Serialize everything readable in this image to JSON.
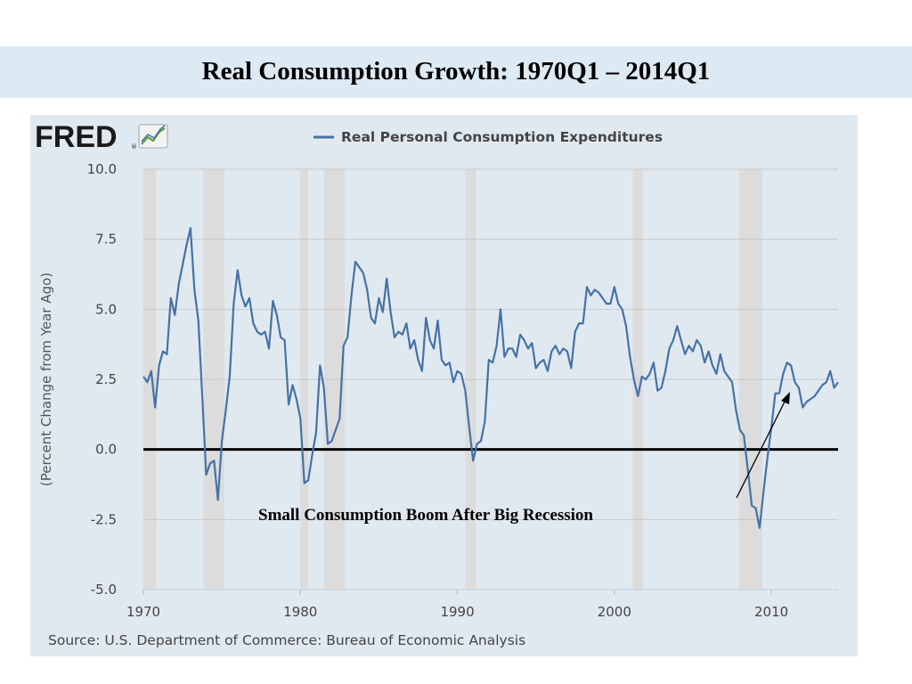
{
  "slide": {
    "title": "Real Consumption Growth: 1970Q1 – 2014Q1"
  },
  "fred": {
    "logo_text": "FRED",
    "registered_mark": "®"
  },
  "annotation": {
    "text": "Small Consumption Boom After Big Recession"
  },
  "colors": {
    "series": "#4572a7",
    "recession": "#dcdcdc",
    "zero_line": "#000000",
    "frame_background": "#e1e9f0",
    "title_band": "#dde9f3"
  },
  "chart_data": {
    "type": "line",
    "ylabel": "(Percent Change from Year Ago)",
    "source": "Source: U.S. Department of Commerce: Bureau of Economic Analysis",
    "xlim": [
      1970,
      2014.25
    ],
    "ylim": [
      -5,
      10
    ],
    "yticks": [
      "10.0",
      "7.5",
      "5.0",
      "2.5",
      "0.0",
      "-2.5",
      "-5.0"
    ],
    "xticks": [
      "1970",
      "1980",
      "1990",
      "2000",
      "2010"
    ],
    "grid": true,
    "legend": "top-center",
    "recessions": [
      [
        1970.0,
        1970.83
      ],
      [
        1973.83,
        1975.17
      ],
      [
        1980.0,
        1980.5
      ],
      [
        1981.5,
        1982.83
      ],
      [
        1990.5,
        1991.17
      ],
      [
        2001.17,
        2001.83
      ],
      [
        2007.92,
        2009.42
      ]
    ],
    "series": [
      {
        "name": "Real Personal Consumption Expenditures",
        "points": [
          [
            1970.0,
            2.6
          ],
          [
            1970.25,
            2.4
          ],
          [
            1970.5,
            2.8
          ],
          [
            1970.75,
            1.5
          ],
          [
            1971.0,
            3.0
          ],
          [
            1971.25,
            3.5
          ],
          [
            1971.5,
            3.4
          ],
          [
            1971.75,
            5.4
          ],
          [
            1972.0,
            4.8
          ],
          [
            1972.25,
            5.9
          ],
          [
            1972.5,
            6.6
          ],
          [
            1972.75,
            7.3
          ],
          [
            1973.0,
            7.9
          ],
          [
            1973.25,
            5.7
          ],
          [
            1973.5,
            4.6
          ],
          [
            1973.75,
            1.9
          ],
          [
            1974.0,
            -0.9
          ],
          [
            1974.25,
            -0.5
          ],
          [
            1974.5,
            -0.4
          ],
          [
            1974.75,
            -1.8
          ],
          [
            1975.0,
            0.3
          ],
          [
            1975.25,
            1.4
          ],
          [
            1975.5,
            2.6
          ],
          [
            1975.75,
            5.2
          ],
          [
            1976.0,
            6.4
          ],
          [
            1976.25,
            5.5
          ],
          [
            1976.5,
            5.1
          ],
          [
            1976.75,
            5.4
          ],
          [
            1977.0,
            4.5
          ],
          [
            1977.25,
            4.2
          ],
          [
            1977.5,
            4.1
          ],
          [
            1977.75,
            4.2
          ],
          [
            1978.0,
            3.6
          ],
          [
            1978.25,
            5.3
          ],
          [
            1978.5,
            4.8
          ],
          [
            1978.75,
            4.0
          ],
          [
            1979.0,
            3.9
          ],
          [
            1979.25,
            1.6
          ],
          [
            1979.5,
            2.3
          ],
          [
            1979.75,
            1.8
          ],
          [
            1980.0,
            1.1
          ],
          [
            1980.25,
            -1.2
          ],
          [
            1980.5,
            -1.1
          ],
          [
            1980.75,
            -0.2
          ],
          [
            1981.0,
            0.6
          ],
          [
            1981.25,
            3.0
          ],
          [
            1981.5,
            2.2
          ],
          [
            1981.75,
            0.2
          ],
          [
            1982.0,
            0.3
          ],
          [
            1982.25,
            0.7
          ],
          [
            1982.5,
            1.1
          ],
          [
            1982.75,
            3.7
          ],
          [
            1983.0,
            4.0
          ],
          [
            1983.25,
            5.5
          ],
          [
            1983.5,
            6.7
          ],
          [
            1983.75,
            6.5
          ],
          [
            1984.0,
            6.3
          ],
          [
            1984.25,
            5.7
          ],
          [
            1984.5,
            4.7
          ],
          [
            1984.75,
            4.5
          ],
          [
            1985.0,
            5.4
          ],
          [
            1985.25,
            4.9
          ],
          [
            1985.5,
            6.1
          ],
          [
            1985.75,
            4.9
          ],
          [
            1986.0,
            4.0
          ],
          [
            1986.25,
            4.2
          ],
          [
            1986.5,
            4.1
          ],
          [
            1986.75,
            4.5
          ],
          [
            1987.0,
            3.6
          ],
          [
            1987.25,
            3.9
          ],
          [
            1987.5,
            3.2
          ],
          [
            1987.75,
            2.8
          ],
          [
            1988.0,
            4.7
          ],
          [
            1988.25,
            3.9
          ],
          [
            1988.5,
            3.6
          ],
          [
            1988.75,
            4.6
          ],
          [
            1989.0,
            3.2
          ],
          [
            1989.25,
            3.0
          ],
          [
            1989.5,
            3.1
          ],
          [
            1989.75,
            2.4
          ],
          [
            1990.0,
            2.8
          ],
          [
            1990.25,
            2.7
          ],
          [
            1990.5,
            2.1
          ],
          [
            1990.75,
            0.8
          ],
          [
            1991.0,
            -0.4
          ],
          [
            1991.25,
            0.2
          ],
          [
            1991.5,
            0.3
          ],
          [
            1991.75,
            1.0
          ],
          [
            1992.0,
            3.2
          ],
          [
            1992.25,
            3.1
          ],
          [
            1992.5,
            3.7
          ],
          [
            1992.75,
            5.0
          ],
          [
            1993.0,
            3.3
          ],
          [
            1993.25,
            3.6
          ],
          [
            1993.5,
            3.6
          ],
          [
            1993.75,
            3.3
          ],
          [
            1994.0,
            4.1
          ],
          [
            1994.25,
            3.9
          ],
          [
            1994.5,
            3.6
          ],
          [
            1994.75,
            3.8
          ],
          [
            1995.0,
            2.9
          ],
          [
            1995.25,
            3.1
          ],
          [
            1995.5,
            3.2
          ],
          [
            1995.75,
            2.8
          ],
          [
            1996.0,
            3.5
          ],
          [
            1996.25,
            3.7
          ],
          [
            1996.5,
            3.4
          ],
          [
            1996.75,
            3.6
          ],
          [
            1997.0,
            3.5
          ],
          [
            1997.25,
            2.9
          ],
          [
            1997.5,
            4.2
          ],
          [
            1997.75,
            4.5
          ],
          [
            1998.0,
            4.5
          ],
          [
            1998.25,
            5.8
          ],
          [
            1998.5,
            5.5
          ],
          [
            1998.75,
            5.7
          ],
          [
            1999.0,
            5.6
          ],
          [
            1999.25,
            5.4
          ],
          [
            1999.5,
            5.2
          ],
          [
            1999.75,
            5.2
          ],
          [
            2000.0,
            5.8
          ],
          [
            2000.25,
            5.2
          ],
          [
            2000.5,
            5.0
          ],
          [
            2000.75,
            4.4
          ],
          [
            2001.0,
            3.3
          ],
          [
            2001.25,
            2.5
          ],
          [
            2001.5,
            1.9
          ],
          [
            2001.75,
            2.6
          ],
          [
            2002.0,
            2.5
          ],
          [
            2002.25,
            2.7
          ],
          [
            2002.5,
            3.1
          ],
          [
            2002.75,
            2.1
          ],
          [
            2003.0,
            2.2
          ],
          [
            2003.25,
            2.8
          ],
          [
            2003.5,
            3.6
          ],
          [
            2003.75,
            3.9
          ],
          [
            2004.0,
            4.4
          ],
          [
            2004.25,
            3.9
          ],
          [
            2004.5,
            3.4
          ],
          [
            2004.75,
            3.7
          ],
          [
            2005.0,
            3.5
          ],
          [
            2005.25,
            3.9
          ],
          [
            2005.5,
            3.7
          ],
          [
            2005.75,
            3.1
          ],
          [
            2006.0,
            3.5
          ],
          [
            2006.25,
            3.0
          ],
          [
            2006.5,
            2.7
          ],
          [
            2006.75,
            3.4
          ],
          [
            2007.0,
            2.8
          ],
          [
            2007.25,
            2.6
          ],
          [
            2007.5,
            2.4
          ],
          [
            2007.75,
            1.4
          ],
          [
            2008.0,
            0.7
          ],
          [
            2008.25,
            0.5
          ],
          [
            2008.5,
            -0.7
          ],
          [
            2008.75,
            -2.0
          ],
          [
            2009.0,
            -2.1
          ],
          [
            2009.25,
            -2.8
          ],
          [
            2009.5,
            -1.5
          ],
          [
            2009.75,
            -0.3
          ],
          [
            2010.0,
            0.8
          ],
          [
            2010.25,
            2.0
          ],
          [
            2010.5,
            2.0
          ],
          [
            2010.75,
            2.7
          ],
          [
            2011.0,
            3.1
          ],
          [
            2011.25,
            3.0
          ],
          [
            2011.5,
            2.4
          ],
          [
            2011.75,
            2.2
          ],
          [
            2012.0,
            1.5
          ],
          [
            2012.25,
            1.7
          ],
          [
            2012.5,
            1.8
          ],
          [
            2012.75,
            1.9
          ],
          [
            2013.0,
            2.1
          ],
          [
            2013.25,
            2.3
          ],
          [
            2013.5,
            2.4
          ],
          [
            2013.75,
            2.8
          ],
          [
            2014.0,
            2.2
          ],
          [
            2014.25,
            2.4
          ]
        ]
      }
    ]
  }
}
